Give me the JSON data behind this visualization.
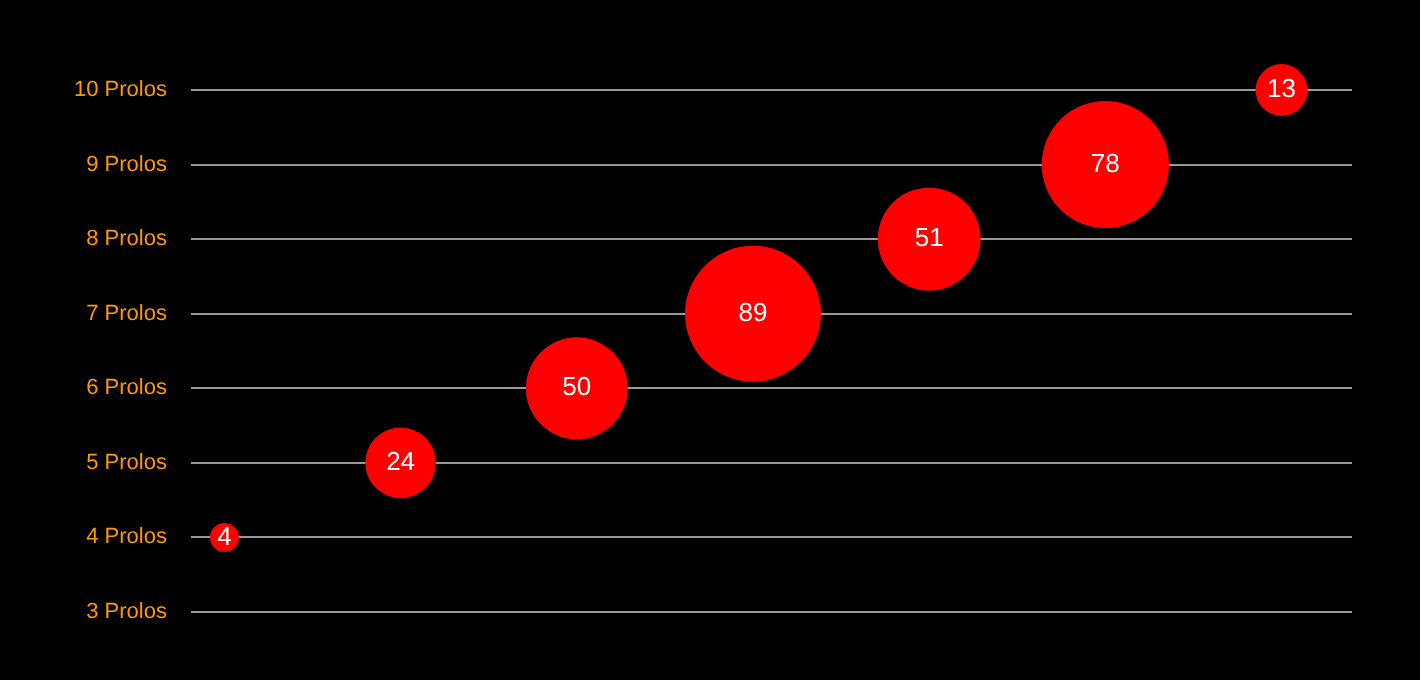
{
  "chart_data": {
    "type": "bubble",
    "categories": [
      null,
      null,
      null,
      null,
      null,
      null,
      null
    ],
    "series": [
      {
        "color": "#ff0000",
        "values": [
          4,
          5,
          6,
          7,
          8,
          9,
          10
        ],
        "sizes": [
          0.045,
          0.27,
          0.562,
          1,
          0.573,
          0.876,
          0.146
        ]
      }
    ],
    "annotations": [
      {
        "text": "4",
        "y": 4
      },
      {
        "text": "24",
        "y": 5
      },
      {
        "text": "50",
        "y": 6
      },
      {
        "text": "89",
        "y": 7
      },
      {
        "text": "51",
        "y": 8
      },
      {
        "text": "78",
        "y": 9
      },
      {
        "text": "13",
        "y": 10
      }
    ],
    "ylim": [
      3,
      10
    ],
    "yticks": [
      {
        "value": 3,
        "label": "3 Prolos"
      },
      {
        "value": 4,
        "label": "4 Prolos"
      },
      {
        "value": 5,
        "label": "5 Prolos"
      },
      {
        "value": 6,
        "label": "6 Prolos"
      },
      {
        "value": 7,
        "label": "7 Prolos"
      },
      {
        "value": 8,
        "label": "8 Prolos"
      },
      {
        "value": 9,
        "label": "9 Prolos"
      },
      {
        "value": 10,
        "label": "10 Prolos"
      }
    ],
    "grid": "y",
    "legend": false
  }
}
